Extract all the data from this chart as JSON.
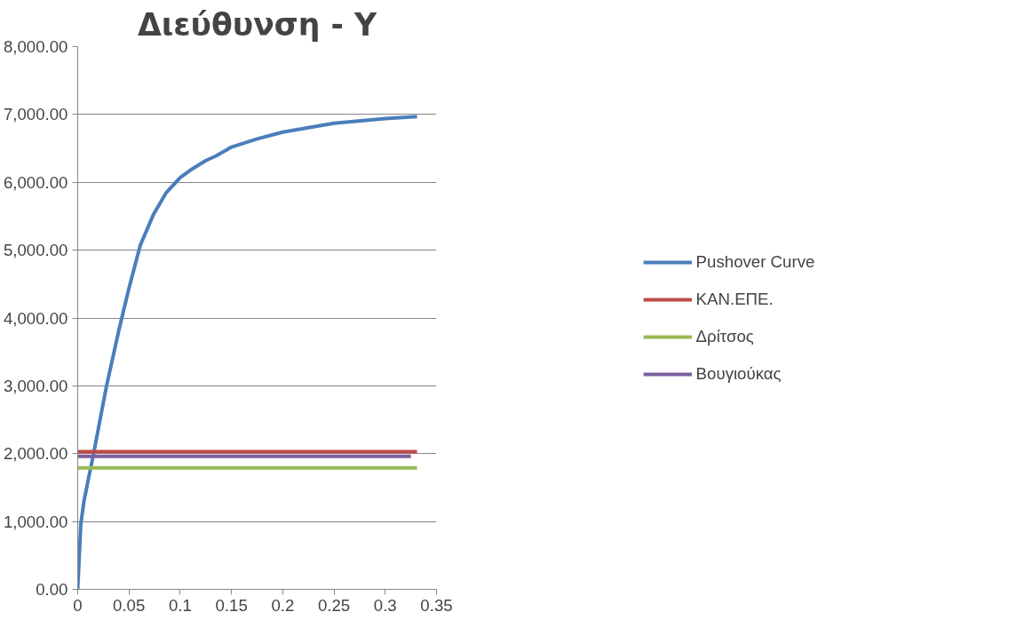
{
  "chart_data": {
    "type": "line",
    "title": "Διεύθυνση - Υ",
    "xlim": [
      0,
      0.35
    ],
    "xticks": [
      {
        "value": 0,
        "label": "0"
      },
      0.05,
      0.1,
      0.15,
      0.2,
      0.25,
      0.3,
      0.35
    ],
    "ylim": [
      0,
      8000
    ],
    "yticks": [
      {
        "value": 0,
        "label": "0.00"
      },
      {
        "value": 1000,
        "label": "1,000.00"
      },
      {
        "value": 2000,
        "label": "2,000.00"
      },
      {
        "value": 3000,
        "label": "3,000.00"
      },
      {
        "value": 4000,
        "label": "4,000.00"
      },
      {
        "value": 5000,
        "label": "5,000.00"
      },
      {
        "value": 6000,
        "label": "6,000.00"
      },
      {
        "value": 7000,
        "label": "7,000.00"
      },
      {
        "value": 8000,
        "label": "8,000.00"
      }
    ],
    "grid": "y",
    "legend": "right",
    "marker": "none",
    "line_style": "solid",
    "series": [
      {
        "name": "Pushover Curve",
        "color": "#4a7ebb",
        "x": [
          0,
          0.003,
          0.006,
          0.011,
          0.015,
          0.02,
          0.028,
          0.04,
          0.05,
          0.061,
          0.074,
          0.086,
          0.1,
          0.112,
          0.125,
          0.135,
          0.15,
          0.175,
          0.2,
          0.25,
          0.3,
          0.331
        ],
        "values": [
          0,
          960,
          1290,
          1670,
          1960,
          2360,
          2990,
          3810,
          4440,
          5070,
          5530,
          5840,
          6070,
          6200,
          6320,
          6390,
          6520,
          6640,
          6740,
          6870,
          6940,
          6970
        ]
      },
      {
        "name": "ΚΑΝ.ΕΠΕ.",
        "color": "#be4b48",
        "x": [
          0,
          0.331
        ],
        "values": [
          2030,
          2030
        ]
      },
      {
        "name": "Δρίτσος",
        "color": "#98b954",
        "x": [
          0,
          0.331
        ],
        "values": [
          1790,
          1790
        ]
      },
      {
        "name": "Βουγιούκας",
        "color": "#7d60a0",
        "x": [
          0,
          0.325
        ],
        "values": [
          1960,
          1960
        ]
      }
    ]
  }
}
